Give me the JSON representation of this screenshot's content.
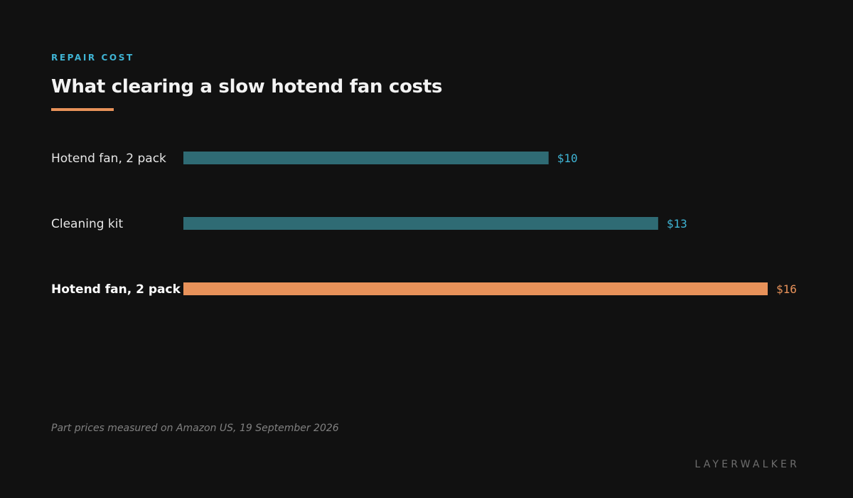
{
  "colors": {
    "background": "#111111",
    "eyebrow": "#3fb4d4",
    "title": "#f3f3f3",
    "accent": "#e8925a",
    "bar_default": "#2f6b74",
    "label_default": "#e6e6e6",
    "value_default": "#3fb4d4",
    "label_highlight": "#ffffff",
    "note": "#808080",
    "brand": "#6e6e6e"
  },
  "header": {
    "eyebrow": "REPAIR COST",
    "title": "What clearing a slow hotend fan costs"
  },
  "chart_data": {
    "type": "bar",
    "orientation": "horizontal",
    "categories": [
      "Hotend fan, 2 pack",
      "Cleaning kit",
      "Hotend fan, 2 pack"
    ],
    "values": [
      10,
      13,
      16
    ],
    "value_labels": [
      "$10",
      "$13",
      "$16"
    ],
    "highlight_index": 2,
    "xlim": [
      0,
      16
    ],
    "grid": false,
    "legend": "none"
  },
  "footer": {
    "note": "Part prices measured on Amazon US, 19 September 2026",
    "brand": "LAYERWALKER"
  }
}
